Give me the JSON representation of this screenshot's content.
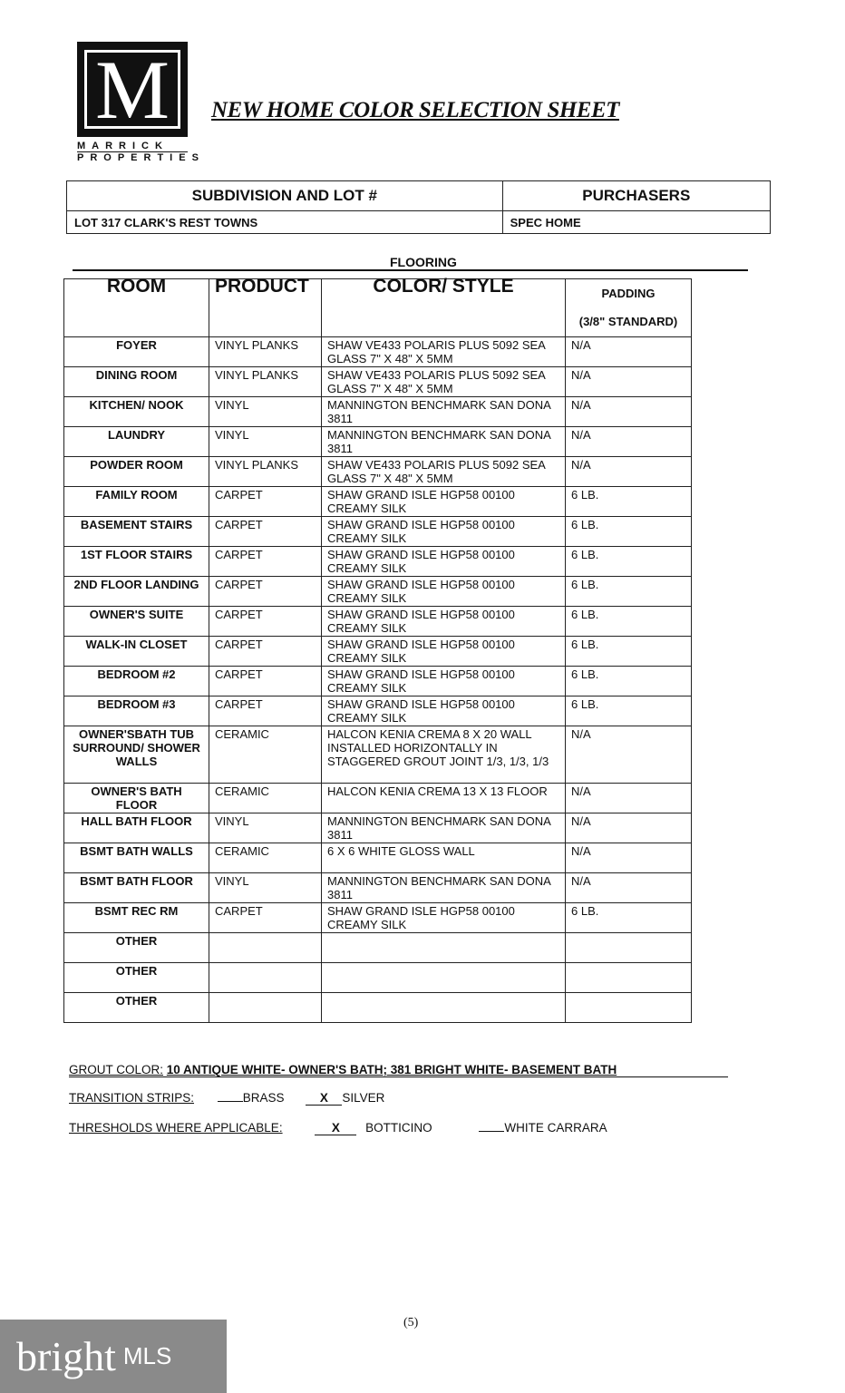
{
  "logo": {
    "letter": "M",
    "line1": "MARRICK",
    "line2": "PROPERTIES"
  },
  "title": "NEW HOME COLOR SELECTION SHEET",
  "info": {
    "subdivision_label": "SUBDIVISION AND LOT #",
    "purchasers_label": "PURCHASERS",
    "subdivision_value": "LOT 317 CLARK'S REST TOWNS",
    "purchasers_value": "SPEC HOME"
  },
  "section": "FLOORING",
  "table": {
    "headers": {
      "room": "ROOM",
      "product": "PRODUCT",
      "color": "COLOR/ STYLE",
      "padding": "PADDING",
      "padding_note": "(3/8\" STANDARD)"
    },
    "rows": [
      {
        "room": "FOYER",
        "product": "VINYL PLANKS",
        "color": "SHAW VE433 POLARIS PLUS 5092 SEA GLASS 7\" X 48\" X 5MM",
        "padding": "N/A"
      },
      {
        "room": "DINING ROOM",
        "product": "VINYL PLANKS",
        "color": "SHAW VE433 POLARIS PLUS 5092 SEA GLASS 7\" X 48\" X 5MM",
        "padding": "N/A"
      },
      {
        "room": "KITCHEN/ NOOK",
        "product": "VINYL",
        "color": "MANNINGTON BENCHMARK SAN DONA 3811",
        "padding": "N/A"
      },
      {
        "room": "LAUNDRY",
        "product": "VINYL",
        "color": "MANNINGTON BENCHMARK SAN DONA 3811",
        "padding": "N/A"
      },
      {
        "room": "POWDER ROOM",
        "product": "VINYL PLANKS",
        "color": "SHAW VE433 POLARIS PLUS 5092 SEA GLASS 7\" X 48\" X 5MM",
        "padding": "N/A"
      },
      {
        "room": "FAMILY ROOM",
        "product": "CARPET",
        "color": "SHAW GRAND ISLE HGP58 00100 CREAMY SILK",
        "padding": "6 LB."
      },
      {
        "room": "BASEMENT STAIRS",
        "product": "CARPET",
        "color": "SHAW GRAND ISLE HGP58 00100 CREAMY SILK",
        "padding": "6 LB."
      },
      {
        "room": "1ST FLOOR STAIRS",
        "product": "CARPET",
        "color": "SHAW GRAND ISLE HGP58 00100 CREAMY SILK",
        "padding": "6 LB."
      },
      {
        "room": "2ND FLOOR LANDING",
        "product": "CARPET",
        "color": "SHAW GRAND ISLE HGP58 00100 CREAMY SILK",
        "padding": "6 LB."
      },
      {
        "room": "OWNER'S SUITE",
        "product": "CARPET",
        "color": "SHAW GRAND ISLE HGP58 00100 CREAMY SILK",
        "padding": "6 LB."
      },
      {
        "room": "WALK-IN CLOSET",
        "product": "CARPET",
        "color": "SHAW GRAND ISLE HGP58 00100 CREAMY SILK",
        "padding": "6 LB."
      },
      {
        "room": "BEDROOM #2",
        "product": "CARPET",
        "color": "SHAW GRAND ISLE HGP58 00100 CREAMY SILK",
        "padding": "6 LB."
      },
      {
        "room": "BEDROOM #3",
        "product": "CARPET",
        "color": "SHAW GRAND ISLE HGP58 00100 CREAMY SILK",
        "padding": "6 LB."
      },
      {
        "room": "OWNER'SBATH TUB SURROUND/ SHOWER WALLS",
        "product": "CERAMIC",
        "color": "HALCON KENIA CREMA 8 X 20 WALL INSTALLED HORIZONTALLY IN STAGGERED GROUT JOINT 1/3, 1/3, 1/3",
        "padding": "N/A"
      },
      {
        "room": "OWNER'S BATH FLOOR",
        "product": "CERAMIC",
        "color": "HALCON KENIA CREMA 13 X 13 FLOOR",
        "padding": "N/A"
      },
      {
        "room": "HALL BATH FLOOR",
        "product": "VINYL",
        "color": "MANNINGTON BENCHMARK SAN DONA 3811",
        "padding": "N/A"
      },
      {
        "room": "BSMT BATH WALLS",
        "product": "CERAMIC",
        "color": "6 X 6 WHITE GLOSS WALL",
        "padding": "N/A"
      },
      {
        "room": "BSMT BATH FLOOR",
        "product": "VINYL",
        "color": "MANNINGTON BENCHMARK SAN DONA 3811",
        "padding": "N/A"
      },
      {
        "room": "BSMT REC RM",
        "product": "CARPET",
        "color": "SHAW GRAND ISLE HGP58 00100 CREAMY SILK",
        "padding": "6 LB."
      },
      {
        "room": "OTHER",
        "product": "",
        "color": "",
        "padding": ""
      },
      {
        "room": "OTHER",
        "product": "",
        "color": "",
        "padding": ""
      },
      {
        "room": "OTHER",
        "product": "",
        "color": "",
        "padding": ""
      }
    ]
  },
  "grout": {
    "label": "GROUT COLOR:",
    "value": "10 ANTIQUE WHITE- OWNER'S BATH; 381 BRIGHT WHITE- BASEMENT BATH"
  },
  "transition": {
    "label": "TRANSITION STRIPS:",
    "brass_mark": "",
    "brass": "BRASS",
    "silver_mark": "X",
    "silver": "SILVER"
  },
  "thresholds": {
    "label": "THRESHOLDS WHERE APPLICABLE:",
    "botticino_mark": "X",
    "botticino": "BOTTICINO",
    "carrara_mark": "",
    "carrara": "WHITE CARRARA"
  },
  "page_number": "(5)",
  "watermark": {
    "brand": "bright",
    "suffix": "MLS",
    "color": "#8a8a8a"
  }
}
